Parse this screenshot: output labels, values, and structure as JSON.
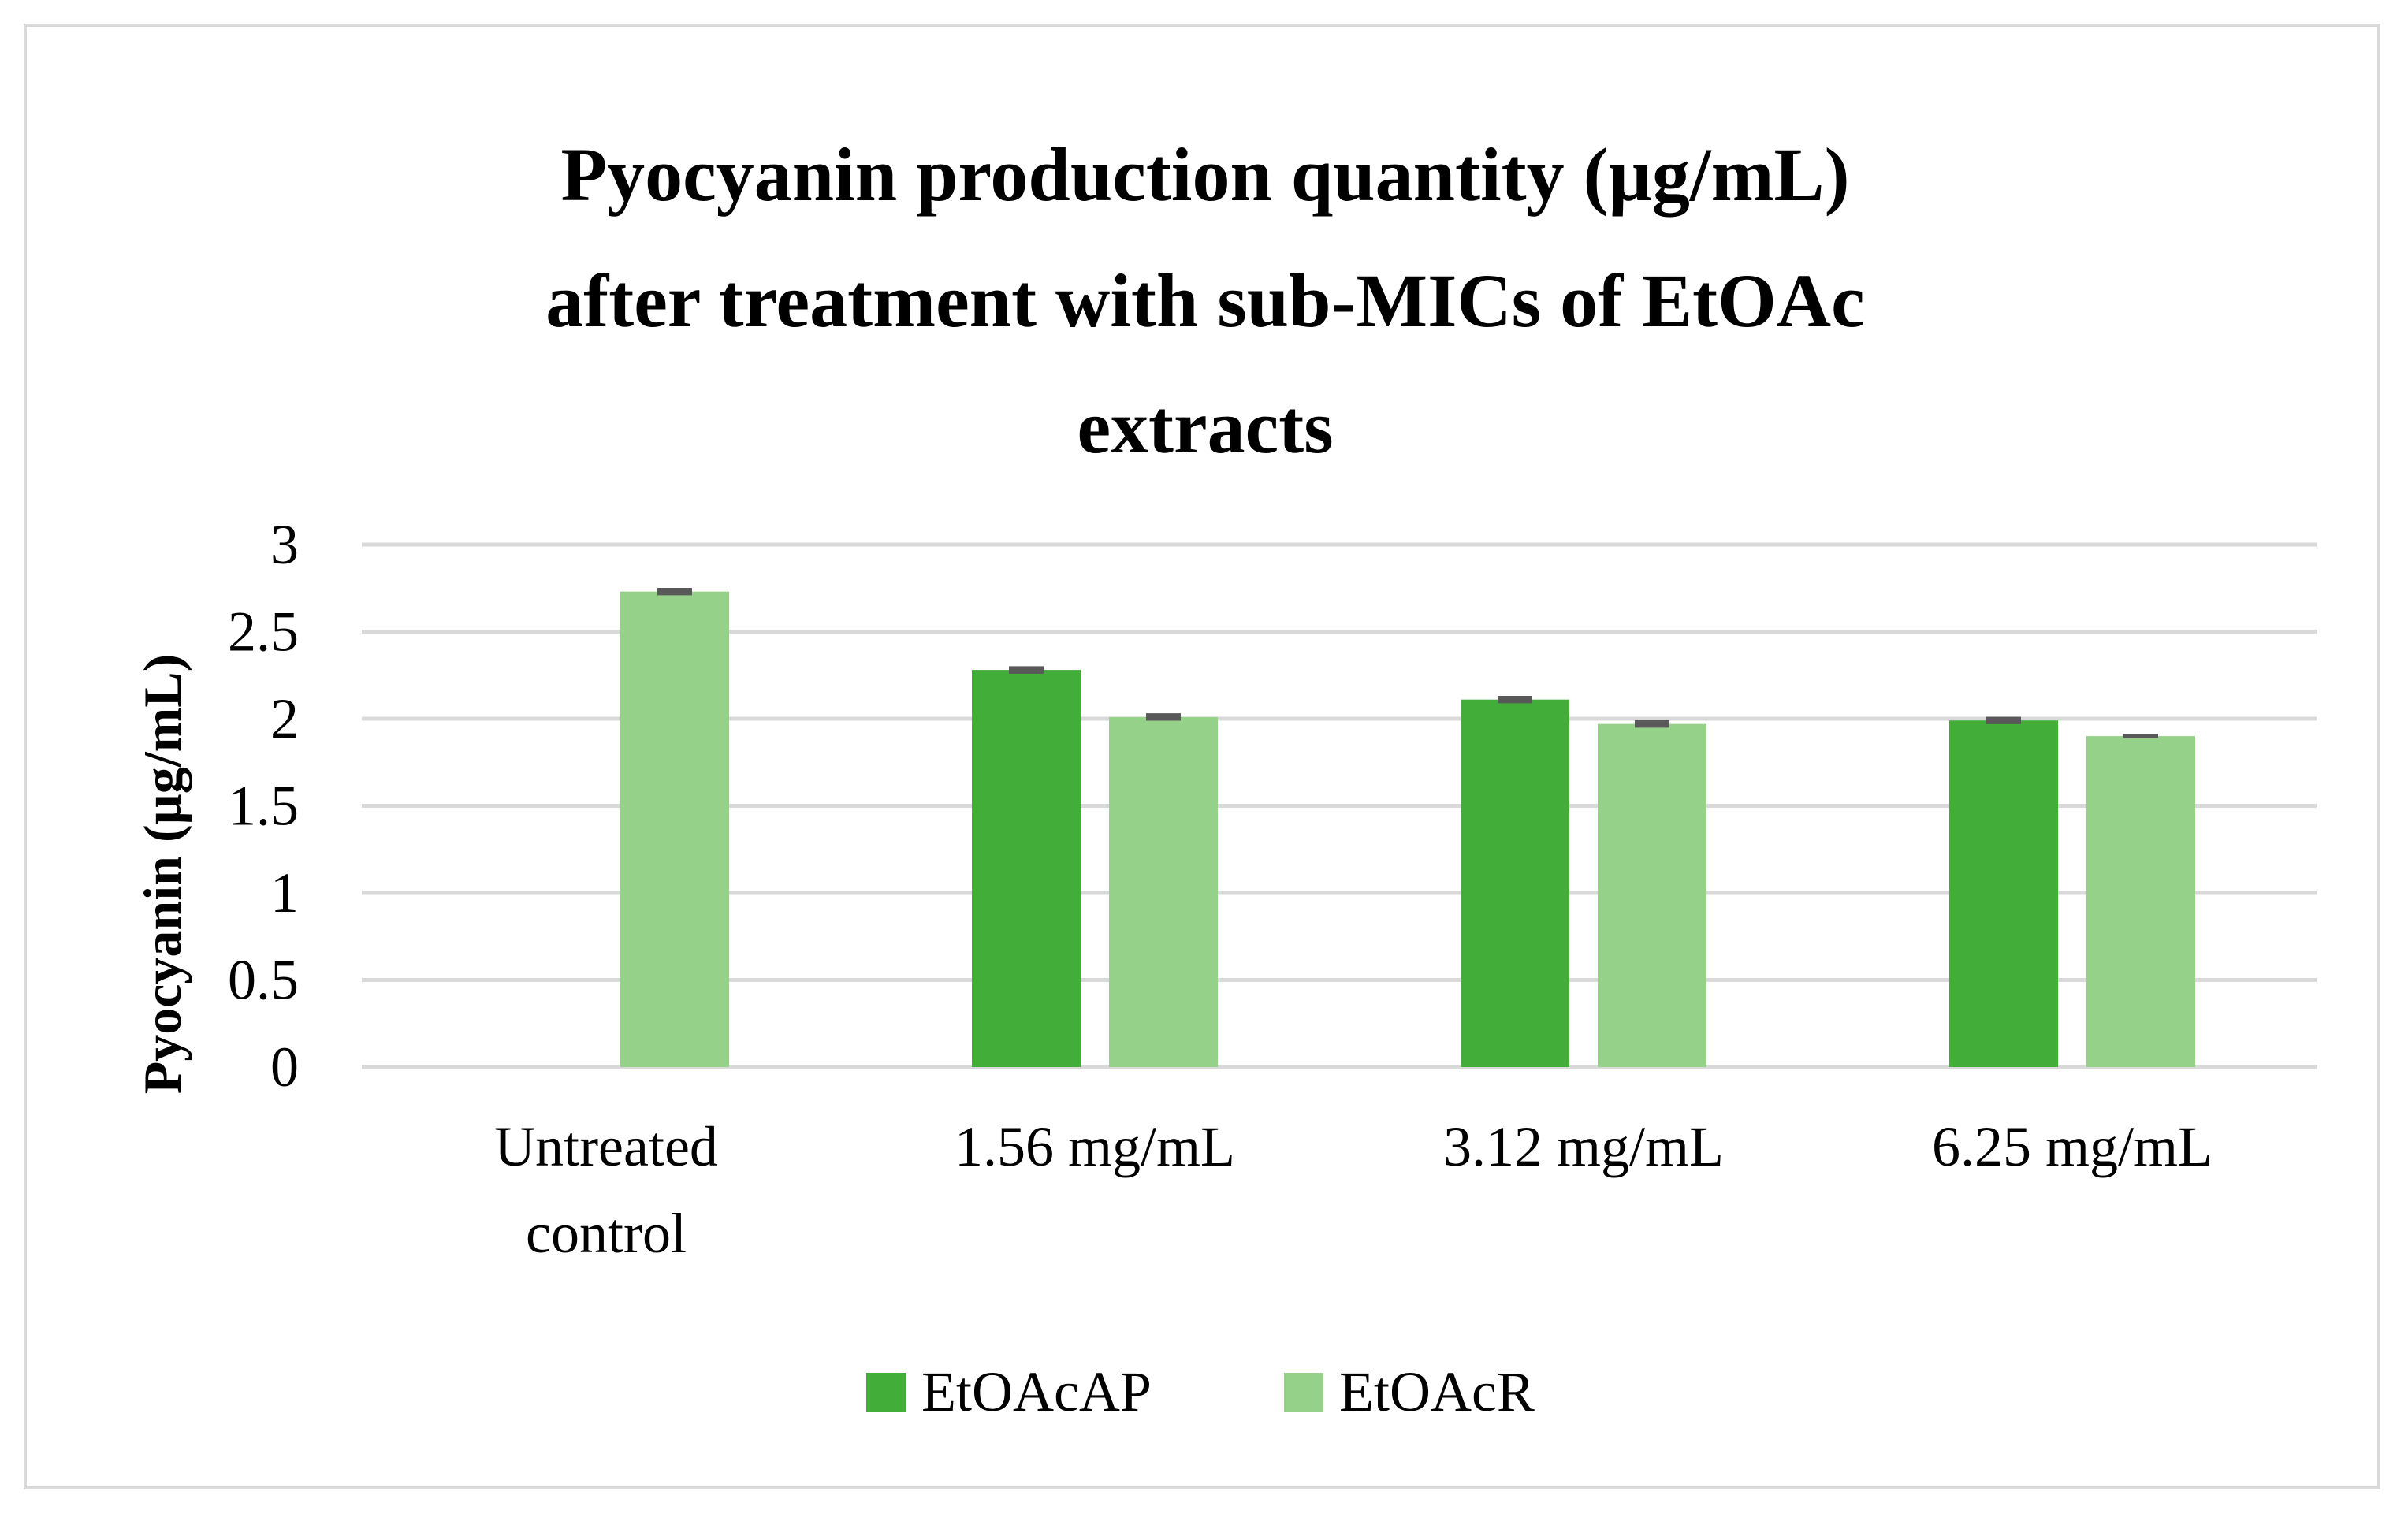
{
  "chart_data": {
    "type": "bar",
    "title": "Pyocyanin production quantity (µg/mL) after treatment with sub-MICs of EtOAc extracts",
    "title_lines": [
      "Pyocyanin production quantity (µg/mL)",
      "after treatment with sub-MICs of EtOAc",
      "extracts"
    ],
    "ylabel": "Pyocyanin (µg/mL)",
    "xlabel": "",
    "ylim": [
      0,
      3
    ],
    "yticks": [
      0,
      0.5,
      1,
      1.5,
      2,
      2.5,
      3
    ],
    "ytick_labels": [
      "0",
      "0.5",
      "1",
      "1.5",
      "2",
      "2.5",
      "3"
    ],
    "categories": [
      [
        "Untreated",
        "control"
      ],
      [
        "1.56 mg/mL"
      ],
      [
        "3.12 mg/mL"
      ],
      [
        "6.25 mg/mL"
      ]
    ],
    "grid": true,
    "legend_position": "bottom",
    "series": [
      {
        "name": "EtOAcAP",
        "color": "#43ad3a",
        "values": [
          null,
          2.28,
          2.11,
          1.99
        ],
        "errors": [
          null,
          0.01,
          0.01,
          0.01
        ]
      },
      {
        "name": "EtOAcR",
        "color": "#96d18a",
        "values": [
          2.73,
          2.01,
          1.97,
          1.9
        ],
        "errors": [
          0.01,
          0.01,
          0.01,
          0
        ]
      }
    ]
  }
}
